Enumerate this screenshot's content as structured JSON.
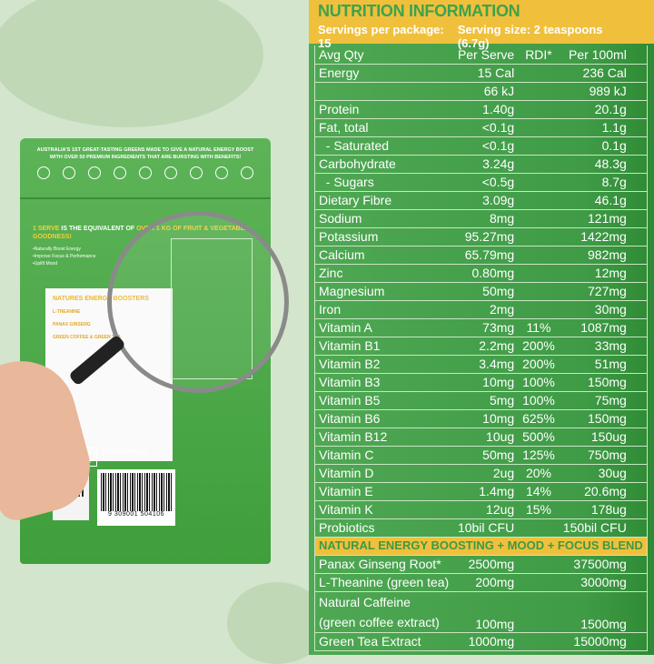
{
  "bag": {
    "tagline": "AUSTRALIA'S 1ST GREAT-TASTING GREENS MADE TO GIVE A NATURAL ENERGY BOOST WITH OVER 50 PREMIUM INGREDIENTS THAT ARE BURSTING WITH BENEFITS!",
    "serve_highlight": "1 SERVE",
    "serve_text": " IS THE EQUIVALENT OF ",
    "serve_highlight2": "OVER 1 KG OF FRUIT & VEGETABLE GOODNESS!",
    "bullets": [
      "•Naturally Boost Energy",
      "•Improve Focus & Performance",
      "•Uplift Mood"
    ],
    "boosters_title": "NATURES ENERGY BOOSTERS",
    "boosters": [
      "L-THEANINE",
      "PANAX GINSENG",
      "GREEN COFFEE & GREEN TEA"
    ],
    "made_in": "Made in Australia from at least 90% Australian ingredients",
    "company": "SAVVY BEVERAGES",
    "barcode": "9 309001 504106"
  },
  "nutrition": {
    "title": "NUTRITION INFORMATION",
    "servings_per_package": "Servings per package: 15",
    "serving_size": "Serving size: 2 teaspoons (6.7g)",
    "columns": [
      "Avg Qty",
      "Per Serve",
      "RDI*",
      "Per 100ml"
    ],
    "rows": [
      [
        "Energy",
        "15 Cal",
        "",
        "236 Cal"
      ],
      [
        "",
        "66 kJ",
        "",
        "989 kJ"
      ],
      [
        "Protein",
        "1.40g",
        "",
        "20.1g"
      ],
      [
        "Fat, total",
        "<0.1g",
        "",
        "1.1g"
      ],
      [
        "  - Saturated",
        "<0.1g",
        "",
        "0.1g"
      ],
      [
        "Carbohydrate",
        "3.24g",
        "",
        "48.3g"
      ],
      [
        "  - Sugars",
        "<0.5g",
        "",
        "8.7g"
      ],
      [
        "Dietary Fibre",
        "3.09g",
        "",
        "46.1g"
      ],
      [
        "Sodium",
        "8mg",
        "",
        "121mg"
      ],
      [
        "Potassium",
        "95.27mg",
        "",
        "1422mg"
      ],
      [
        "Calcium",
        "65.79mg",
        "",
        "982mg"
      ],
      [
        "Zinc",
        "0.80mg",
        "",
        "12mg"
      ],
      [
        "Magnesium",
        "50mg",
        "",
        "727mg"
      ],
      [
        "Iron",
        "2mg",
        "",
        "30mg"
      ],
      [
        "Vitamin A",
        "73mg",
        "11%",
        "1087mg"
      ],
      [
        "Vitamin B1",
        "2.2mg",
        "200%",
        "33mg"
      ],
      [
        "Vitamin B2",
        "3.4mg",
        "200%",
        "51mg"
      ],
      [
        "Vitamin B3",
        "10mg",
        "100%",
        "150mg"
      ],
      [
        "Vitamin B5",
        "5mg",
        "100%",
        "75mg"
      ],
      [
        "Vitamin B6",
        "10mg",
        "625%",
        "150mg"
      ],
      [
        "Vitamin B12",
        "10ug",
        "500%",
        "150ug"
      ],
      [
        "Vitamin C",
        "50mg",
        "125%",
        "750mg"
      ],
      [
        "Vitamin D",
        "2ug",
        "20%",
        "30ug"
      ],
      [
        "Vitamin E",
        "1.4mg",
        "14%",
        "20.6mg"
      ],
      [
        "Vitamin K",
        "12ug",
        "15%",
        "178ug"
      ],
      [
        "Probiotics",
        "10bil CFU",
        "",
        "150bil CFU"
      ]
    ],
    "blend_title": "NATURAL ENERGY BOOSTING + MOOD + FOCUS BLEND",
    "blend_rows": [
      [
        "Panax Ginseng Root*",
        "2500mg",
        "",
        "37500mg"
      ],
      [
        "L-Theanine (green tea)",
        "200mg",
        "",
        "3000mg"
      ],
      [
        "Natural Caffeine (green coffee extract)",
        "100mg",
        "",
        "1500mg"
      ],
      [
        "Green Tea Extract",
        "1000mg",
        "",
        "15000mg"
      ]
    ]
  },
  "colors": {
    "panel_green": "#4fa853",
    "header_yellow": "#f0c03d",
    "title_green": "#3da24e",
    "background": "#d3e6cd"
  }
}
